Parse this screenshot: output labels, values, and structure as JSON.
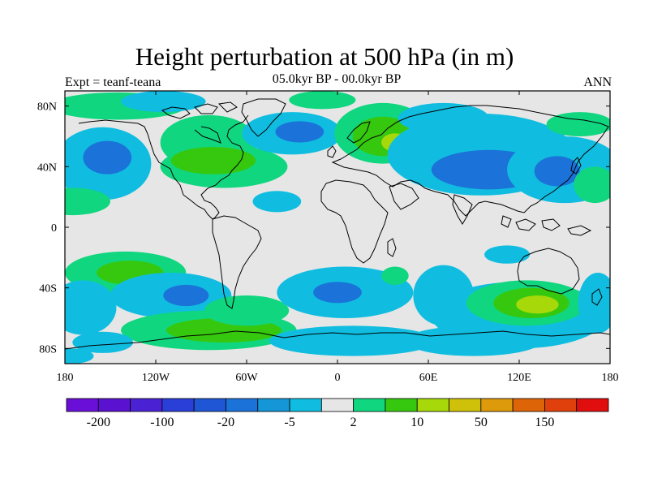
{
  "header": {
    "title": "Height perturbation at 500 hPa (in m)",
    "subtitle": "05.0kyr BP - 00.0kyr BP",
    "experiment": "Expt = teanf-teana",
    "season": "ANN"
  },
  "axes": {
    "x_ticks": [
      {
        "lon": -180,
        "label": "180"
      },
      {
        "lon": -120,
        "label": "120W"
      },
      {
        "lon": -60,
        "label": "60W"
      },
      {
        "lon": 0,
        "label": "0"
      },
      {
        "lon": 60,
        "label": "60E"
      },
      {
        "lon": 120,
        "label": "120E"
      },
      {
        "lon": 180,
        "label": "180"
      }
    ],
    "y_ticks": [
      {
        "lat": 80,
        "label": "80N"
      },
      {
        "lat": 40,
        "label": "40N"
      },
      {
        "lat": 0,
        "label": "0"
      },
      {
        "lat": -40,
        "label": "40S"
      },
      {
        "lat": -80,
        "label": "80S"
      }
    ],
    "lon_range": [
      -180,
      180
    ],
    "lat_range": [
      -90,
      90
    ]
  },
  "colorbar": {
    "colors": [
      "#6a0fd8",
      "#5a12d0",
      "#4a22d4",
      "#2a3ed8",
      "#1e56d6",
      "#1b72d8",
      "#1596d6",
      "#10bde0",
      "#e6e6e6",
      "#10d67f",
      "#36c80e",
      "#a6d80a",
      "#cfc10a",
      "#dd9a0a",
      "#de6408",
      "#e0400c",
      "#e00e0e"
    ],
    "labels": [
      {
        "boundary": 1,
        "text": "-200"
      },
      {
        "boundary": 3,
        "text": "-100"
      },
      {
        "boundary": 5,
        "text": "-20"
      },
      {
        "boundary": 7,
        "text": "-5"
      },
      {
        "boundary": 9,
        "text": "2"
      },
      {
        "boundary": 11,
        "text": "10"
      },
      {
        "boundary": 13,
        "text": "50"
      },
      {
        "boundary": 15,
        "text": "150"
      }
    ]
  },
  "map": {
    "background": "#e6e6e6",
    "fields": [
      {
        "color": "#10bde0",
        "lon": -155,
        "lat": 42,
        "rlon": 32,
        "rlat": 24
      },
      {
        "color": "#1b72d8",
        "lon": -152,
        "lat": 46,
        "rlon": 16,
        "rlat": 11
      },
      {
        "color": "#10d67f",
        "lon": -175,
        "lat": 17,
        "rlon": 25,
        "rlat": 9
      },
      {
        "color": "#10d67f",
        "lon": -145,
        "lat": 80,
        "rlon": 45,
        "rlat": 9
      },
      {
        "color": "#10bde0",
        "lon": -115,
        "lat": 83,
        "rlon": 28,
        "rlat": 7
      },
      {
        "color": "#10d67f",
        "lon": -85,
        "lat": 56,
        "rlon": 32,
        "rlat": 18
      },
      {
        "color": "#10d67f",
        "lon": -75,
        "lat": 40,
        "rlon": 42,
        "rlat": 14
      },
      {
        "color": "#36c80e",
        "lon": -82,
        "lat": 44,
        "rlon": 28,
        "rlat": 9
      },
      {
        "color": "#10bde0",
        "lon": -30,
        "lat": 62,
        "rlon": 33,
        "rlat": 14
      },
      {
        "color": "#1b72d8",
        "lon": -25,
        "lat": 63,
        "rlon": 16,
        "rlat": 7
      },
      {
        "color": "#10d67f",
        "lon": -10,
        "lat": 84,
        "rlon": 22,
        "rlat": 6
      },
      {
        "color": "#10d67f",
        "lon": 30,
        "lat": 62,
        "rlon": 32,
        "rlat": 20
      },
      {
        "color": "#36c80e",
        "lon": 30,
        "lat": 60,
        "rlon": 20,
        "rlat": 13
      },
      {
        "color": "#a6d80a",
        "lon": 38,
        "lat": 56,
        "rlon": 9,
        "rlat": 6
      },
      {
        "color": "#10bde0",
        "lon": 70,
        "lat": 72,
        "rlon": 30,
        "rlat": 10
      },
      {
        "color": "#10bde0",
        "lon": 95,
        "lat": 48,
        "rlon": 62,
        "rlat": 27
      },
      {
        "color": "#1b72d8",
        "lon": 100,
        "lat": 38,
        "rlon": 38,
        "rlat": 13
      },
      {
        "color": "#10bde0",
        "lon": 150,
        "lat": 38,
        "rlon": 38,
        "rlat": 22
      },
      {
        "color": "#1b72d8",
        "lon": 145,
        "lat": 37,
        "rlon": 15,
        "rlat": 10
      },
      {
        "color": "#10d67f",
        "lon": 160,
        "lat": 68,
        "rlon": 22,
        "rlat": 8
      },
      {
        "color": "#10d67f",
        "lon": 170,
        "lat": 28,
        "rlon": 14,
        "rlat": 12
      },
      {
        "color": "#10bde0",
        "lon": -40,
        "lat": 17,
        "rlon": 16,
        "rlat": 7
      },
      {
        "color": "#10d67f",
        "lon": -140,
        "lat": -30,
        "rlon": 40,
        "rlat": 14
      },
      {
        "color": "#36c80e",
        "lon": -137,
        "lat": -30,
        "rlon": 22,
        "rlat": 8
      },
      {
        "color": "#10bde0",
        "lon": -168,
        "lat": -53,
        "rlon": 22,
        "rlat": 18
      },
      {
        "color": "#10bde0",
        "lon": -110,
        "lat": -45,
        "rlon": 40,
        "rlat": 15
      },
      {
        "color": "#1b72d8",
        "lon": -100,
        "lat": -45,
        "rlon": 15,
        "rlat": 7
      },
      {
        "color": "#10d67f",
        "lon": -85,
        "lat": -68,
        "rlon": 58,
        "rlat": 13
      },
      {
        "color": "#36c80e",
        "lon": -75,
        "lat": -68,
        "rlon": 38,
        "rlat": 8
      },
      {
        "color": "#10d67f",
        "lon": -60,
        "lat": -55,
        "rlon": 28,
        "rlat": 10
      },
      {
        "color": "#10bde0",
        "lon": -155,
        "lat": -76,
        "rlon": 20,
        "rlat": 7
      },
      {
        "color": "#10bde0",
        "lon": 5,
        "lat": -43,
        "rlon": 45,
        "rlat": 17
      },
      {
        "color": "#1b72d8",
        "lon": 0,
        "lat": -43,
        "rlon": 16,
        "rlat": 7
      },
      {
        "color": "#10d67f",
        "lon": 38,
        "lat": -32,
        "rlon": 9,
        "rlat": 6
      },
      {
        "color": "#10bde0",
        "lon": 70,
        "lat": -45,
        "rlon": 20,
        "rlat": 20
      },
      {
        "color": "#10bde0",
        "lon": 10,
        "lat": -75,
        "rlon": 55,
        "rlat": 10
      },
      {
        "color": "#10bde0",
        "lon": 90,
        "lat": -75,
        "rlon": 45,
        "rlat": 10
      },
      {
        "color": "#10bde0",
        "lon": 120,
        "lat": -58,
        "rlon": 58,
        "rlat": 22
      },
      {
        "color": "#10d67f",
        "lon": 125,
        "lat": -50,
        "rlon": 40,
        "rlat": 15
      },
      {
        "color": "#36c80e",
        "lon": 128,
        "lat": -50,
        "rlon": 25,
        "rlat": 10
      },
      {
        "color": "#a6d80a",
        "lon": 132,
        "lat": -51,
        "rlon": 14,
        "rlat": 6
      },
      {
        "color": "#10bde0",
        "lon": 112,
        "lat": -18,
        "rlon": 15,
        "rlat": 6
      },
      {
        "color": "#10bde0",
        "lon": 172,
        "lat": -50,
        "rlon": 13,
        "rlat": 20
      },
      {
        "color": "#10bde0",
        "lon": -175,
        "lat": -85,
        "rlon": 14,
        "rlat": 5
      }
    ]
  }
}
